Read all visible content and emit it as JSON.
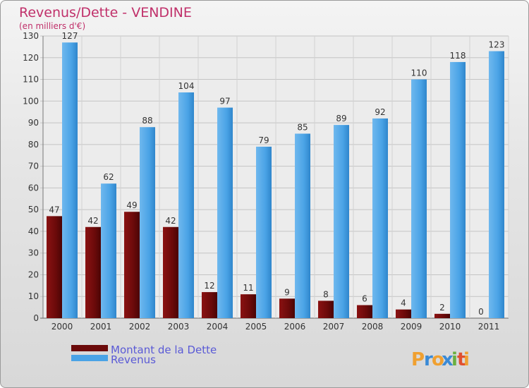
{
  "chart_data": {
    "type": "bar",
    "title": "Revenus/Dette - VENDINE",
    "subtitle": "(en milliers d'€)",
    "categories": [
      "2000",
      "2001",
      "2002",
      "2003",
      "2004",
      "2005",
      "2006",
      "2007",
      "2008",
      "2009",
      "2010",
      "2011"
    ],
    "series": [
      {
        "name": "Montant de la Dette",
        "color": "#6b0a0a",
        "values": [
          47,
          42,
          49,
          42,
          12,
          11,
          9,
          8,
          6,
          4,
          2,
          0
        ]
      },
      {
        "name": "Revenus",
        "color": "#4aa3e6",
        "values": [
          127,
          62,
          88,
          104,
          97,
          79,
          85,
          89,
          92,
          110,
          118,
          123
        ]
      }
    ],
    "ylim": [
      0,
      130
    ],
    "ytick_step": 10,
    "grid": true,
    "legend_position": "bottom-left",
    "title_color": "#c0306a",
    "legend_text_color": "#5a5ad6"
  },
  "brand": {
    "letters": [
      "P",
      "r",
      "o",
      "x",
      "i",
      "t",
      "i"
    ],
    "colors": [
      "#f0a030",
      "#3a8ad6",
      "#f0a030",
      "#3a8ad6",
      "#6ab040",
      "#e05030",
      "#f0a030"
    ]
  }
}
